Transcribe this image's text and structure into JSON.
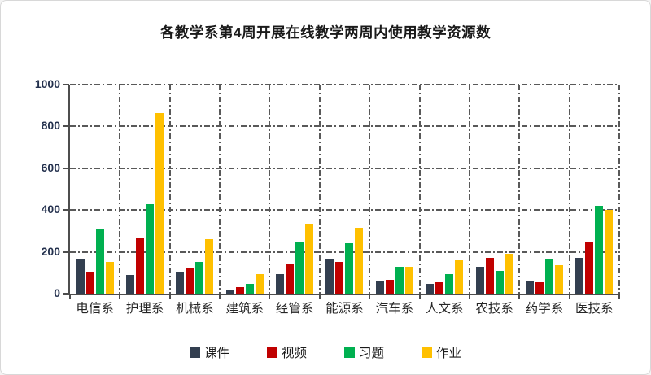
{
  "title": "各教学系第4周开展在线教学两周内使用教学资源数",
  "chart_data": {
    "type": "bar",
    "title": "各教学系第4周开展在线教学两周内使用教学资源数",
    "categories": [
      "电信系",
      "护理系",
      "机械系",
      "建筑系",
      "经管系",
      "能源系",
      "汽车系",
      "人文系",
      "农技系",
      "药学系",
      "医技系"
    ],
    "series": [
      {
        "name": "课件",
        "color": "#333F50",
        "values": [
          165,
          90,
          105,
          20,
          95,
          165,
          60,
          45,
          130,
          60,
          170
        ]
      },
      {
        "name": "视频",
        "color": "#C00000",
        "values": [
          105,
          265,
          120,
          30,
          140,
          150,
          65,
          55,
          170,
          55,
          245
        ]
      },
      {
        "name": "习题",
        "color": "#00B050",
        "values": [
          310,
          430,
          150,
          45,
          250,
          240,
          130,
          95,
          110,
          165,
          420
        ]
      },
      {
        "name": "作业",
        "color": "#FFC000",
        "values": [
          150,
          865,
          260,
          95,
          335,
          315,
          130,
          160,
          190,
          135,
          400
        ]
      }
    ],
    "ylim": [
      0,
      1000
    ],
    "yticks": [
      0,
      200,
      400,
      600,
      800,
      1000
    ],
    "xlabel": "",
    "ylabel": "",
    "grid": "dash-dot horizontal and vertical",
    "legend_position": "bottom"
  }
}
